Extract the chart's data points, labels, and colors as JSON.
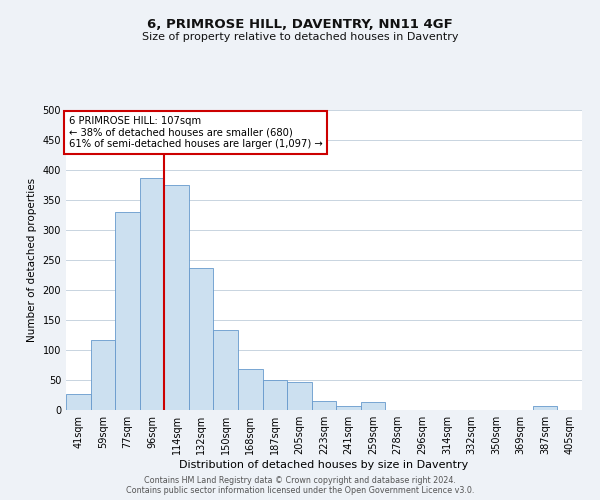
{
  "title": "6, PRIMROSE HILL, DAVENTRY, NN11 4GF",
  "subtitle": "Size of property relative to detached houses in Daventry",
  "xlabel": "Distribution of detached houses by size in Daventry",
  "ylabel": "Number of detached properties",
  "categories": [
    "41sqm",
    "59sqm",
    "77sqm",
    "96sqm",
    "114sqm",
    "132sqm",
    "150sqm",
    "168sqm",
    "187sqm",
    "205sqm",
    "223sqm",
    "241sqm",
    "259sqm",
    "278sqm",
    "296sqm",
    "314sqm",
    "332sqm",
    "350sqm",
    "369sqm",
    "387sqm",
    "405sqm"
  ],
  "values": [
    27,
    116,
    330,
    387,
    375,
    236,
    133,
    68,
    50,
    46,
    15,
    7,
    13,
    0,
    0,
    0,
    0,
    0,
    0,
    6,
    0
  ],
  "bar_color": "#cce0f0",
  "bar_edge_color": "#6699cc",
  "vline_color": "#cc0000",
  "annotation_title": "6 PRIMROSE HILL: 107sqm",
  "annotation_line1": "← 38% of detached houses are smaller (680)",
  "annotation_line2": "61% of semi-detached houses are larger (1,097) →",
  "annotation_box_facecolor": "#ffffff",
  "annotation_box_edgecolor": "#cc0000",
  "ylim": [
    0,
    500
  ],
  "yticks": [
    0,
    50,
    100,
    150,
    200,
    250,
    300,
    350,
    400,
    450,
    500
  ],
  "footer1": "Contains HM Land Registry data © Crown copyright and database right 2024.",
  "footer2": "Contains public sector information licensed under the Open Government Licence v3.0.",
  "background_color": "#eef2f7",
  "plot_background_color": "#ffffff",
  "grid_color": "#c8d4e0"
}
